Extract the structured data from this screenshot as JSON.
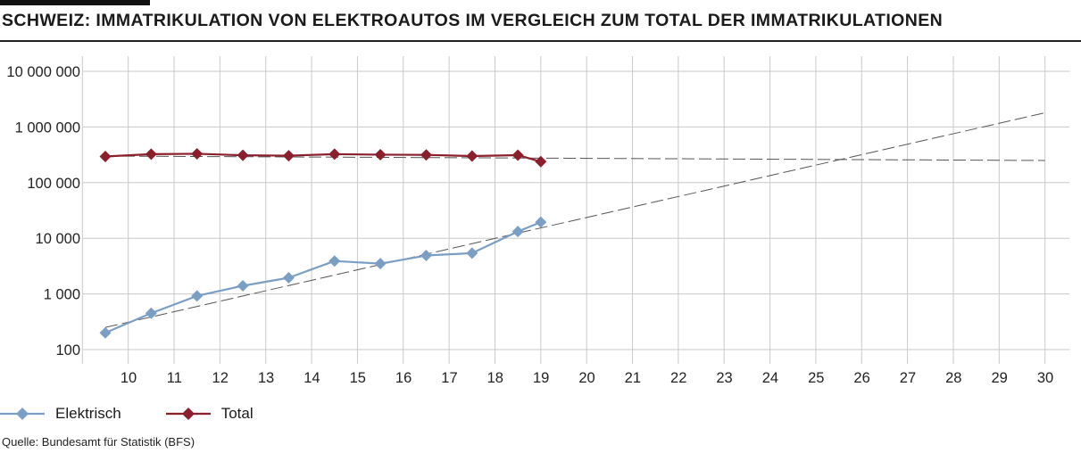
{
  "title": "SCHWEIZ: IMMATRIKULATION VON ELEKTROAUTOS IM VERGLEICH ZUM TOTAL DER IMMATRIKULATIONEN",
  "source": "Quelle: Bundesamt für Statistik (BFS)",
  "colors": {
    "elektrisch": "#7b9fc4",
    "total": "#8b1f2b",
    "grid": "#c9c9c9",
    "trend": "#555555"
  },
  "chart_data": {
    "type": "line",
    "y_scale": "log",
    "grid": true,
    "legend_position": "bottom-left",
    "x_categories": [
      "10",
      "11",
      "12",
      "13",
      "14",
      "15",
      "16",
      "17",
      "18",
      "19",
      "20",
      "21",
      "22",
      "23",
      "24",
      "25",
      "26",
      "27",
      "28",
      "29",
      "30"
    ],
    "y_ticks": [
      {
        "value": 100,
        "label": "100"
      },
      {
        "value": 1000,
        "label": "1 000"
      },
      {
        "value": 10000,
        "label": "10 000"
      },
      {
        "value": 100000,
        "label": "100 000"
      },
      {
        "value": 1000000,
        "label": "1 000 000"
      },
      {
        "value": 10000000,
        "label": "10 000 000"
      }
    ],
    "ylim": [
      100,
      10000000
    ],
    "series": [
      {
        "name": "Elektrisch",
        "color_key": "elektrisch",
        "x": [
          "10",
          "11",
          "12",
          "13",
          "14",
          "15",
          "16",
          "17",
          "18",
          "19"
        ],
        "values": [
          200,
          450,
          920,
          1400,
          1950,
          3900,
          3500,
          4900,
          5400,
          13200
        ]
      },
      {
        "name": "Total",
        "color_key": "total",
        "x": [
          "10",
          "11",
          "12",
          "13",
          "14",
          "15",
          "16",
          "17",
          "18",
          "19"
        ],
        "values": [
          295000,
          325000,
          330000,
          310000,
          305000,
          325000,
          318000,
          315000,
          300000,
          312000
        ]
      }
    ],
    "extra_points": [
      {
        "series": "Elektrisch",
        "x": "19.5",
        "value": 19500
      },
      {
        "series": "Total",
        "x": "19.5",
        "value": 238000
      }
    ],
    "trendlines": [
      {
        "series": "Elektrisch",
        "x_start": "10",
        "value_start": 250,
        "x_end": "30.5",
        "value_end": 1800000
      },
      {
        "series": "Total",
        "x_start": "10",
        "value_start": 300000,
        "x_end": "30.5",
        "value_end": 250000
      }
    ]
  }
}
